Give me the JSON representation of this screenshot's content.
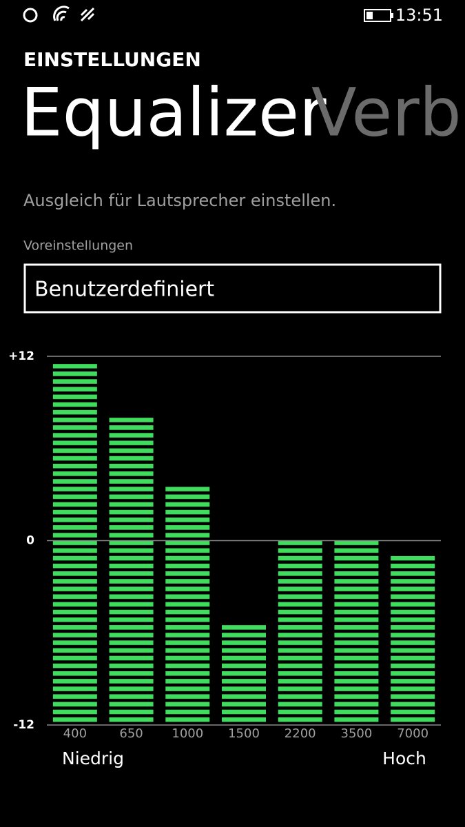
{
  "status_bar": {
    "time": "13:51"
  },
  "header": {
    "section": "EINSTELLUNGEN",
    "title": "Equalizer",
    "next_title": "Verbe"
  },
  "description": "Ausgleich für Lautsprecher einstellen.",
  "preset": {
    "label": "Voreinstellungen",
    "value": "Benutzerdefiniert"
  },
  "chart_data": {
    "type": "bar",
    "categories": [
      "400",
      "650",
      "1000",
      "1500",
      "2200",
      "3500",
      "7000"
    ],
    "values": [
      11.5,
      8,
      3.5,
      -5.5,
      0,
      0,
      -1
    ],
    "color": "#3fdc5e",
    "ylim": [
      -12,
      12
    ],
    "yticks": [
      {
        "value": 12,
        "label": "+12"
      },
      0,
      -12
    ],
    "grid": true,
    "annotations": [
      "Niedrig",
      "Hoch"
    ]
  }
}
